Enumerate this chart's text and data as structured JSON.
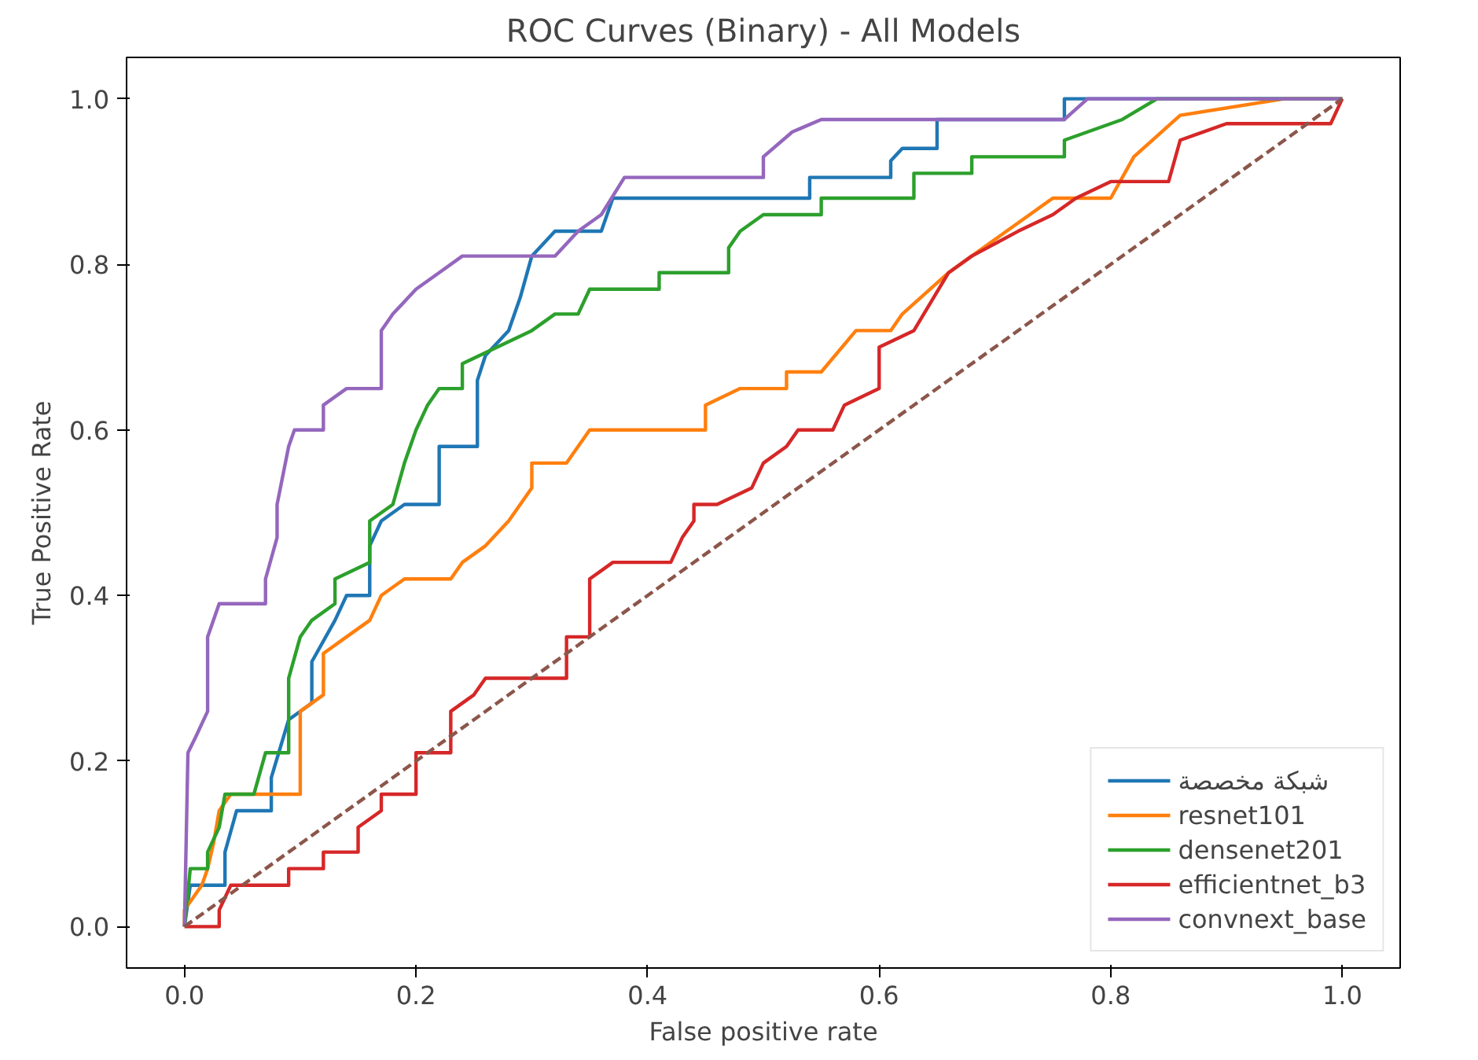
{
  "chart_data": {
    "type": "line",
    "title": "ROC Curves (Binary) - All Models",
    "xlabel": "False positive rate",
    "ylabel": "True Positive Rate",
    "xlim": [
      -0.05,
      1.05
    ],
    "ylim": [
      -0.05,
      1.05
    ],
    "xticks": [
      {
        "value": 0,
        "label": "0.0"
      },
      0.2,
      0.4,
      0.6,
      0.8,
      {
        "value": 1,
        "label": "1.0"
      }
    ],
    "yticks": [
      {
        "value": 0,
        "label": "0.0"
      },
      0.2,
      0.4,
      0.6,
      0.8,
      {
        "value": 1,
        "label": "1.0"
      }
    ],
    "grid": false,
    "legend": "bottom right",
    "line_style": "solid",
    "series": [
      {
        "name": "شبكة مخصصة",
        "color": "#1f77b4",
        "x": [
          0,
          0.005,
          0.035,
          0.035,
          0.045,
          0.075,
          0.075,
          0.09,
          0.11,
          0.11,
          0.13,
          0.14,
          0.16,
          0.16,
          0.17,
          0.19,
          0.22,
          0.22,
          0.253,
          0.253,
          0.26,
          0.28,
          0.29,
          0.3,
          0.32,
          0.36,
          0.37,
          0.54,
          0.54,
          0.61,
          0.61,
          0.62,
          0.65,
          0.65,
          0.76,
          0.76,
          1
        ],
        "values": [
          0,
          0.05,
          0.05,
          0.09,
          0.14,
          0.14,
          0.18,
          0.25,
          0.27,
          0.32,
          0.37,
          0.4,
          0.4,
          0.46,
          0.49,
          0.51,
          0.51,
          0.58,
          0.58,
          0.66,
          0.69,
          0.72,
          0.76,
          0.81,
          0.84,
          0.84,
          0.88,
          0.88,
          0.905,
          0.905,
          0.925,
          0.94,
          0.94,
          0.975,
          0.975,
          1.0,
          1.0
        ]
      },
      {
        "name": "resnet101",
        "color": "#ff7f0e",
        "x": [
          0,
          0,
          0.015,
          0.02,
          0.025,
          0.03,
          0.04,
          0.1,
          0.1,
          0.12,
          0.12,
          0.14,
          0.16,
          0.17,
          0.19,
          0.23,
          0.24,
          0.26,
          0.28,
          0.3,
          0.3,
          0.33,
          0.34,
          0.35,
          0.45,
          0.45,
          0.48,
          0.52,
          0.52,
          0.55,
          0.58,
          0.61,
          0.62,
          0.66,
          0.68,
          0.71,
          0.73,
          0.75,
          0.8,
          0.82,
          0.86,
          0.95,
          1
        ],
        "values": [
          0,
          0.02,
          0.05,
          0.07,
          0.1,
          0.14,
          0.16,
          0.16,
          0.26,
          0.28,
          0.33,
          0.35,
          0.37,
          0.4,
          0.42,
          0.42,
          0.44,
          0.46,
          0.49,
          0.53,
          0.56,
          0.56,
          0.58,
          0.6,
          0.6,
          0.63,
          0.65,
          0.65,
          0.67,
          0.67,
          0.72,
          0.72,
          0.74,
          0.79,
          0.81,
          0.84,
          0.86,
          0.88,
          0.88,
          0.93,
          0.98,
          1.0,
          1.0
        ]
      },
      {
        "name": "densenet201",
        "color": "#2ca02c",
        "x": [
          0,
          0.005,
          0.02,
          0.02,
          0.03,
          0.035,
          0.06,
          0.07,
          0.09,
          0.09,
          0.1,
          0.11,
          0.13,
          0.13,
          0.16,
          0.16,
          0.18,
          0.19,
          0.2,
          0.21,
          0.22,
          0.24,
          0.24,
          0.27,
          0.3,
          0.32,
          0.34,
          0.35,
          0.41,
          0.41,
          0.47,
          0.47,
          0.48,
          0.5,
          0.55,
          0.55,
          0.63,
          0.63,
          0.68,
          0.68,
          0.76,
          0.76,
          0.81,
          0.84,
          1
        ],
        "values": [
          0,
          0.07,
          0.07,
          0.09,
          0.12,
          0.16,
          0.16,
          0.21,
          0.21,
          0.3,
          0.35,
          0.37,
          0.39,
          0.42,
          0.44,
          0.49,
          0.51,
          0.56,
          0.6,
          0.63,
          0.65,
          0.65,
          0.68,
          0.7,
          0.72,
          0.74,
          0.74,
          0.77,
          0.77,
          0.79,
          0.79,
          0.82,
          0.84,
          0.86,
          0.86,
          0.88,
          0.88,
          0.91,
          0.91,
          0.93,
          0.93,
          0.95,
          0.975,
          1.0,
          1.0
        ]
      },
      {
        "name": "efficientnet_b3",
        "color": "#d62728",
        "x": [
          0,
          0.03,
          0.03,
          0.04,
          0.09,
          0.09,
          0.12,
          0.12,
          0.15,
          0.15,
          0.17,
          0.17,
          0.2,
          0.2,
          0.23,
          0.23,
          0.25,
          0.26,
          0.33,
          0.33,
          0.35,
          0.35,
          0.37,
          0.42,
          0.43,
          0.44,
          0.44,
          0.46,
          0.49,
          0.5,
          0.52,
          0.53,
          0.56,
          0.57,
          0.6,
          0.6,
          0.63,
          0.66,
          0.68,
          0.72,
          0.75,
          0.77,
          0.8,
          0.85,
          0.86,
          0.9,
          0.99,
          1
        ],
        "values": [
          0,
          0,
          0.02,
          0.05,
          0.05,
          0.07,
          0.07,
          0.09,
          0.09,
          0.12,
          0.14,
          0.16,
          0.16,
          0.21,
          0.21,
          0.26,
          0.28,
          0.3,
          0.3,
          0.35,
          0.35,
          0.42,
          0.44,
          0.44,
          0.47,
          0.49,
          0.51,
          0.51,
          0.53,
          0.56,
          0.58,
          0.6,
          0.6,
          0.63,
          0.65,
          0.7,
          0.72,
          0.79,
          0.81,
          0.84,
          0.86,
          0.88,
          0.9,
          0.9,
          0.95,
          0.97,
          0.97,
          1.0
        ]
      },
      {
        "name": "convnext_base",
        "color": "#9467bd",
        "x": [
          0,
          0.003,
          0.01,
          0.02,
          0.02,
          0.03,
          0.07,
          0.07,
          0.08,
          0.08,
          0.09,
          0.095,
          0.12,
          0.12,
          0.14,
          0.17,
          0.17,
          0.17,
          0.18,
          0.2,
          0.22,
          0.24,
          0.32,
          0.34,
          0.36,
          0.38,
          0.5,
          0.5,
          0.525,
          0.55,
          0.76,
          0.78,
          1
        ],
        "values": [
          0,
          0.21,
          0.23,
          0.26,
          0.35,
          0.39,
          0.39,
          0.42,
          0.47,
          0.51,
          0.58,
          0.6,
          0.6,
          0.63,
          0.65,
          0.65,
          0.67,
          0.72,
          0.74,
          0.77,
          0.79,
          0.81,
          0.81,
          0.84,
          0.86,
          0.905,
          0.905,
          0.93,
          0.96,
          0.975,
          0.975,
          1.0,
          1.0
        ]
      },
      {
        "color": "#8c564b",
        "line_style": "dashed",
        "x": [
          0,
          1
        ],
        "values": [
          0,
          1
        ]
      }
    ]
  }
}
